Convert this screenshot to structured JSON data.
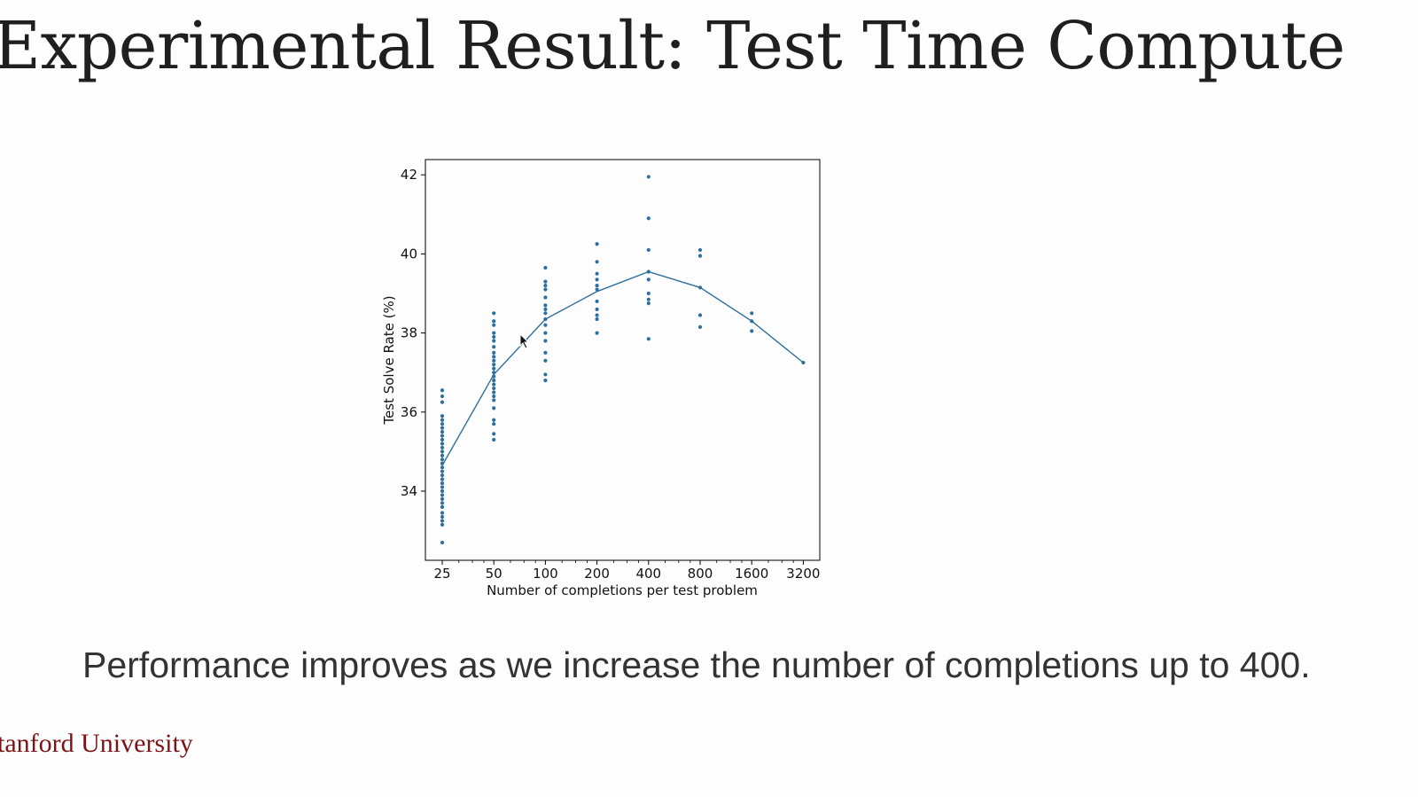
{
  "slide": {
    "title": "Experimental Result: Test Time Compute",
    "caption": "Performance improves as we increase the number of completions up to 400.",
    "footer": "tanford University"
  },
  "colors": {
    "series": "#2e6f9e",
    "title": "#1f1f1f",
    "caption": "#333333",
    "brand": "#7a1416"
  },
  "chart_data": {
    "type": "scatter",
    "xlabel": "Number of completions per test problem",
    "ylabel": "Test Solve Rate (%)",
    "x_scale": "log2",
    "x_ticks": [
      25,
      50,
      100,
      200,
      400,
      800,
      1600,
      3200
    ],
    "y_ticks": [
      34,
      36,
      38,
      40,
      42
    ],
    "ylim": [
      32.5,
      42.4
    ],
    "grid": false,
    "legend": "none",
    "series": [
      {
        "kind": "points",
        "points": [
          {
            "x": 25,
            "y": [
              32.7,
              33.15,
              33.25,
              33.35,
              33.45,
              33.6,
              33.7,
              33.8,
              33.9,
              34.0,
              34.1,
              34.2,
              34.3,
              34.4,
              34.5,
              34.6,
              34.7,
              34.8,
              34.9,
              35.0,
              35.1,
              35.2,
              35.3,
              35.4,
              35.5,
              35.6,
              35.7,
              35.8,
              35.9,
              36.25,
              36.4,
              36.55
            ]
          },
          {
            "x": 50,
            "y": [
              35.3,
              35.45,
              35.7,
              35.8,
              36.1,
              36.3,
              36.4,
              36.5,
              36.6,
              36.7,
              36.8,
              36.9,
              37.0,
              37.1,
              37.2,
              37.3,
              37.4,
              37.5,
              37.65,
              37.8,
              37.9,
              38.0,
              38.2,
              38.3,
              38.5
            ]
          },
          {
            "x": 100,
            "y": [
              36.8,
              36.95,
              37.3,
              37.5,
              37.8,
              38.0,
              38.2,
              38.35,
              38.5,
              38.6,
              38.7,
              38.9,
              39.1,
              39.2,
              39.3,
              39.65
            ]
          },
          {
            "x": 200,
            "y": [
              38.0,
              38.35,
              38.45,
              38.6,
              38.8,
              39.1,
              39.2,
              39.35,
              39.5,
              39.8,
              40.25
            ]
          },
          {
            "x": 400,
            "y": [
              37.85,
              38.75,
              38.85,
              39.0,
              39.35,
              39.55,
              40.1,
              40.9,
              41.95
            ]
          },
          {
            "x": 800,
            "y": [
              38.15,
              38.45,
              39.15,
              39.95,
              40.1
            ]
          },
          {
            "x": 1600,
            "y": [
              38.05,
              38.3,
              38.5
            ]
          },
          {
            "x": 3200,
            "y": [
              37.25
            ]
          }
        ]
      },
      {
        "kind": "line",
        "x": [
          25,
          50,
          100,
          200,
          400,
          800,
          1600,
          3200
        ],
        "y": [
          34.65,
          36.95,
          38.35,
          39.05,
          39.55,
          39.15,
          38.3,
          37.25
        ]
      }
    ]
  }
}
